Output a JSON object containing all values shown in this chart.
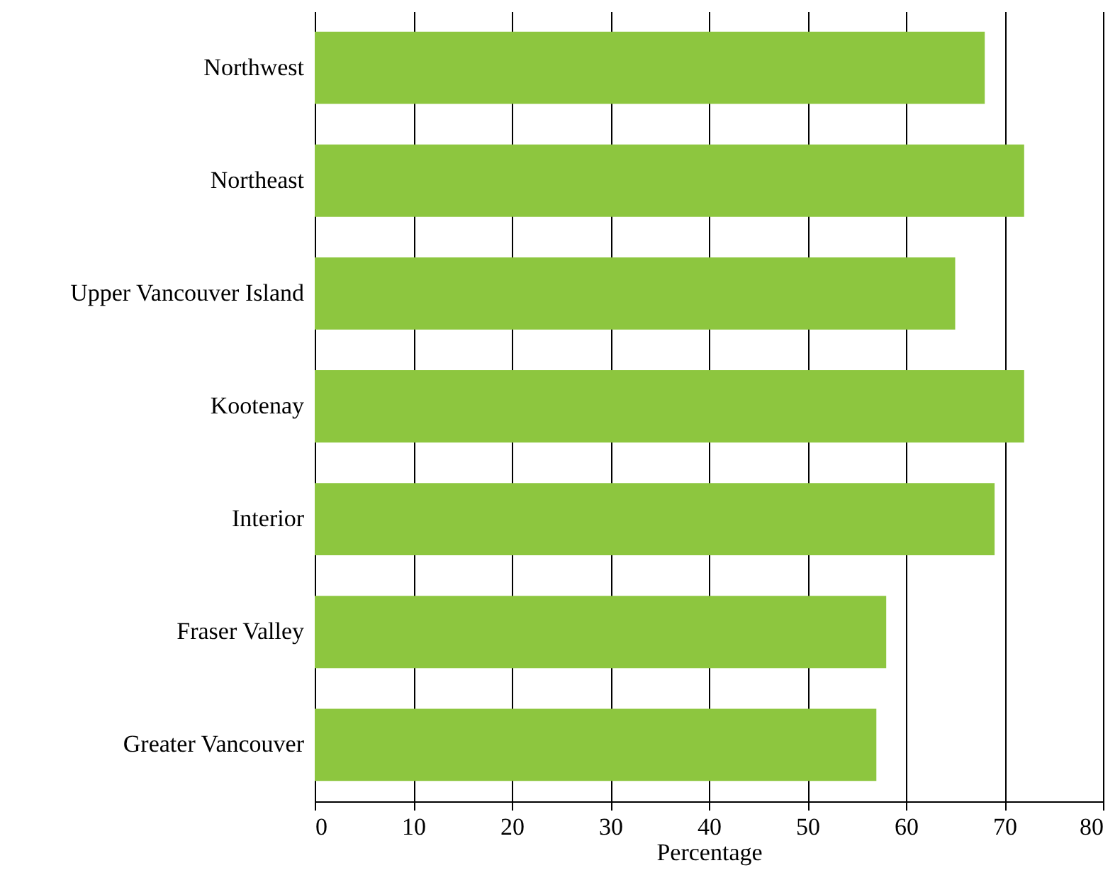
{
  "chart_data": {
    "type": "bar",
    "orientation": "horizontal",
    "xlabel": "Percentage",
    "categories": [
      "Northwest",
      "Northeast",
      "Upper Vancouver Island",
      "Kootenay",
      "Interior",
      "Fraser Valley",
      "Greater Vancouver"
    ],
    "values": [
      68,
      72,
      65,
      72,
      69,
      58,
      57
    ],
    "color": "#8dc63f",
    "xlim": [
      0,
      80
    ],
    "xticks": [
      0,
      10,
      20,
      30,
      40,
      50,
      60,
      70,
      80
    ],
    "grid": "x"
  }
}
